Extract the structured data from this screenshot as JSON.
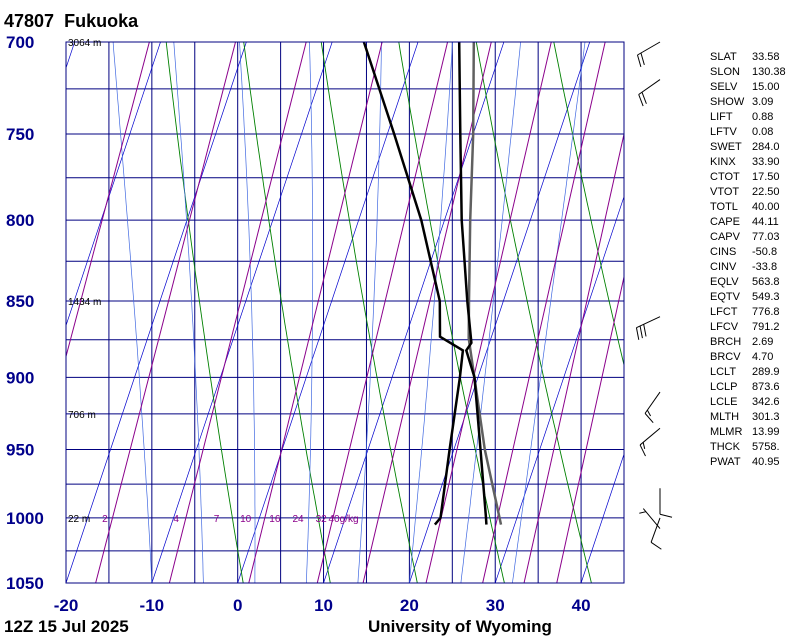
{
  "header": {
    "station_id": "47807",
    "station_name": "Fukuoka"
  },
  "footer": {
    "time": "12Z 15 Jul 2025",
    "source": "University of Wyoming"
  },
  "chart_data": {
    "type": "skew-t",
    "pressure_levels": [
      700,
      750,
      800,
      850,
      900,
      950,
      1000,
      1050
    ],
    "pressure_range": [
      1050,
      700
    ],
    "temperature_ticks": [
      -20,
      -10,
      0,
      10,
      20,
      30,
      40
    ],
    "temperature_range": [
      -20,
      45
    ],
    "height_labels": [
      {
        "p": 700,
        "text": "3064 m"
      },
      {
        "p": 850,
        "text": "1434 m"
      },
      {
        "p": 925,
        "text": "706 m"
      },
      {
        "p": 1000,
        "text": "22 m"
      }
    ],
    "mixing_ratio_labels": [
      {
        "t": -18,
        "text": "2"
      },
      {
        "t": -9.7,
        "text": "4"
      },
      {
        "t": -5,
        "text": "7"
      },
      {
        "t": -1.6,
        "text": "10"
      },
      {
        "t": 1.8,
        "text": "16"
      },
      {
        "t": 4.5,
        "text": "24"
      },
      {
        "t": 7.2,
        "text": "32"
      },
      {
        "t": 9.8,
        "text": "40g/kg"
      }
    ],
    "temperature_profile": [
      {
        "p": 1005,
        "t": 26.7
      },
      {
        "p": 1000,
        "t": 26.4
      },
      {
        "p": 950,
        "t": 23.1
      },
      {
        "p": 900,
        "t": 19.6
      },
      {
        "p": 882,
        "t": 17.6
      },
      {
        "p": 877,
        "t": 17.9
      },
      {
        "p": 850,
        "t": 15.8
      },
      {
        "p": 800,
        "t": 12.0
      },
      {
        "p": 750,
        "t": 8.5
      },
      {
        "p": 700,
        "t": 4.8
      }
    ],
    "dewpoint_profile": [
      {
        "p": 1005,
        "t": 20.7
      },
      {
        "p": 1000,
        "t": 21.1
      },
      {
        "p": 950,
        "t": 19.5
      },
      {
        "p": 900,
        "t": 17.9
      },
      {
        "p": 882,
        "t": 17.2
      },
      {
        "p": 873,
        "t": 14.0
      },
      {
        "p": 850,
        "t": 12.6
      },
      {
        "p": 800,
        "t": 7.3
      },
      {
        "p": 750,
        "t": 0.8
      },
      {
        "p": 700,
        "t": -6.3
      }
    ],
    "parcel_profile": [
      {
        "p": 1005,
        "t": 28.4
      },
      {
        "p": 950,
        "t": 23.6
      },
      {
        "p": 874,
        "t": 17.4
      },
      {
        "p": 850,
        "t": 16.0
      },
      {
        "p": 800,
        "t": 13.0
      },
      {
        "p": 750,
        "t": 10.0
      },
      {
        "p": 700,
        "t": 6.5
      }
    ],
    "wind_barbs": [
      {
        "p": 700,
        "dir": 240,
        "kt": 20
      },
      {
        "p": 720,
        "dir": 235,
        "kt": 20
      },
      {
        "p": 860,
        "dir": 245,
        "kt": 30
      },
      {
        "p": 910,
        "dir": 215,
        "kt": 15
      },
      {
        "p": 935,
        "dir": 230,
        "kt": 15
      },
      {
        "p": 978,
        "dir": 180,
        "kt": 10
      },
      {
        "p": 1000,
        "dir": 200,
        "kt": 10
      },
      {
        "p": 1008,
        "dir": 320,
        "kt": 5
      }
    ]
  },
  "indices": [
    {
      "name": "SLAT",
      "value": "33.58"
    },
    {
      "name": "SLON",
      "value": "130.38"
    },
    {
      "name": "SELV",
      "value": "15.00"
    },
    {
      "name": "SHOW",
      "value": "3.09"
    },
    {
      "name": "LIFT",
      "value": "0.88"
    },
    {
      "name": "LFTV",
      "value": "0.08"
    },
    {
      "name": "SWET",
      "value": "284.0"
    },
    {
      "name": "KINX",
      "value": "33.90"
    },
    {
      "name": "CTOT",
      "value": "17.50"
    },
    {
      "name": "VTOT",
      "value": "22.50"
    },
    {
      "name": "TOTL",
      "value": "40.00"
    },
    {
      "name": "CAPE",
      "value": "44.11"
    },
    {
      "name": "CAPV",
      "value": "77.03"
    },
    {
      "name": "CINS",
      "value": "-50.8"
    },
    {
      "name": "CINV",
      "value": "-33.8"
    },
    {
      "name": "EQLV",
      "value": "563.8"
    },
    {
      "name": "EQTV",
      "value": "549.3"
    },
    {
      "name": "LFCT",
      "value": "776.8"
    },
    {
      "name": "LFCV",
      "value": "791.2"
    },
    {
      "name": "BRCH",
      "value": "2.69"
    },
    {
      "name": "BRCV",
      "value": "4.70"
    },
    {
      "name": "LCLT",
      "value": "289.9"
    },
    {
      "name": "LCLP",
      "value": "873.6"
    },
    {
      "name": "LCLE",
      "value": "342.6"
    },
    {
      "name": "MLTH",
      "value": "301.3"
    },
    {
      "name": "MLMR",
      "value": "13.99"
    },
    {
      "name": "THCK",
      "value": "5758."
    },
    {
      "name": "PWAT",
      "value": "40.95"
    }
  ],
  "colors": {
    "axis_labels": "#00008b",
    "grid": "#000080",
    "isotherm": "#0000cd",
    "dry_adiabat": "#008000",
    "moist_adiabat": "#4169e1",
    "mixing_ratio": "#8b008b",
    "temperature": "#000000",
    "dewpoint": "#000000",
    "parcel": "#606060"
  }
}
